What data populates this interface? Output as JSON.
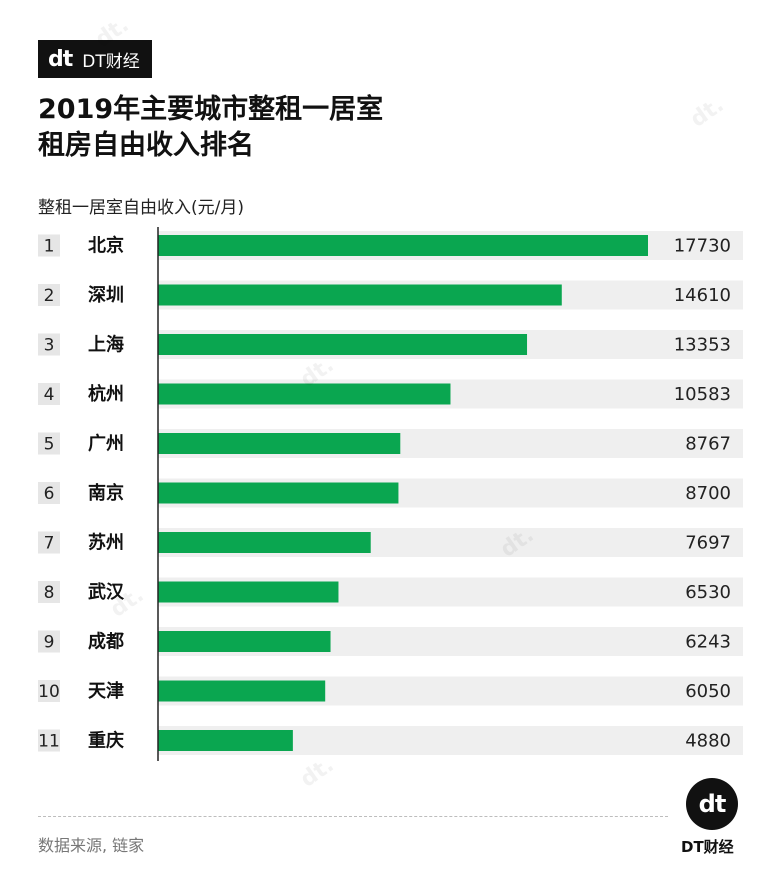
{
  "brand": {
    "logo": "dt",
    "name": "DT财经"
  },
  "title_lines": [
    "2019年主要城市整租一居室",
    "租房自由收入排名"
  ],
  "axis_caption": "整租一居室自由收入(元/月)",
  "source": "数据来源, 链家",
  "footer_brand": "DT财经",
  "colors": {
    "bar": "#0aa650",
    "row_bg": "#efefef",
    "rank_bg": "#e6e6e6"
  },
  "chart_data": {
    "type": "bar",
    "orientation": "horizontal",
    "ranks": [
      "1",
      "2",
      "3",
      "4",
      "5",
      "6",
      "7",
      "8",
      "9",
      "10",
      "11"
    ],
    "categories": [
      "北京",
      "深圳",
      "上海",
      "杭州",
      "广州",
      "南京",
      "苏州",
      "武汉",
      "成都",
      "天津",
      "重庆"
    ],
    "values": [
      17730,
      14610,
      13353,
      10583,
      8767,
      8700,
      7697,
      6530,
      6243,
      6050,
      4880
    ]
  }
}
